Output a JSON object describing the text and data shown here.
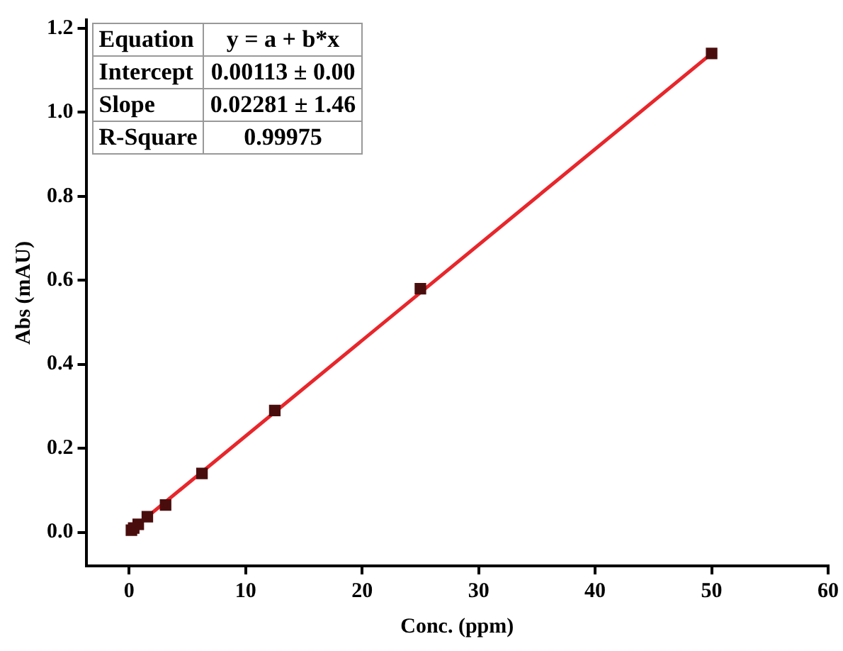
{
  "chart_data": {
    "type": "scatter",
    "xlabel": "Conc. (ppm)",
    "ylabel": "Abs (mAU)",
    "xlim": [
      -3.7,
      60
    ],
    "xticks": [
      0,
      10,
      20,
      30,
      40,
      50,
      60
    ],
    "ylim": [
      -0.08,
      1.22
    ],
    "yticks": [
      {
        "value": 0,
        "label": "0.0"
      },
      {
        "value": 0.2,
        "label": "0.2"
      },
      {
        "value": 0.4,
        "label": "0.4"
      },
      {
        "value": 0.6,
        "label": "0.6"
      },
      {
        "value": 0.8,
        "label": "0.8"
      },
      {
        "value": 1,
        "label": "1.0"
      },
      {
        "value": 1.2,
        "label": "1.2"
      }
    ],
    "grid": false,
    "legend": false,
    "marker": "square",
    "series": [
      {
        "type": "scatter",
        "color": "#4a0d0d",
        "x": [
          0.195,
          0.39,
          0.78,
          1.56,
          3.125,
          6.25,
          12.5,
          25,
          50
        ],
        "values": [
          0.005,
          0.01,
          0.019,
          0.037,
          0.065,
          0.14,
          0.29,
          0.58,
          1.14
        ]
      },
      {
        "type": "line",
        "color": "#e8262b",
        "line_style": "solid",
        "marker": "none",
        "x": [
          0.195,
          50
        ],
        "values": [
          0.006,
          1.14
        ]
      }
    ],
    "annotations": [
      "Equation",
      "y = a + b*x",
      "Intercept",
      "0.00113 ± 0.00",
      "Slope",
      "0.02281 ± 1.46",
      "R-Square",
      "0.99975"
    ]
  }
}
